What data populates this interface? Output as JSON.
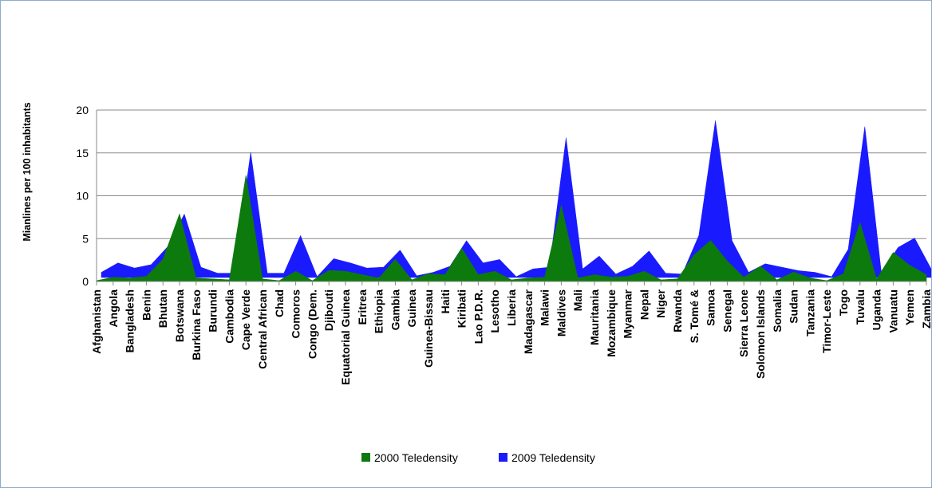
{
  "chart_data": {
    "type": "area",
    "title": "",
    "xlabel": "",
    "ylabel": "Mianlines per 100 inhabitants",
    "ylim": [
      0,
      20
    ],
    "yticks": [
      0,
      5,
      10,
      15,
      20
    ],
    "grid": true,
    "legend_position": "bottom",
    "categories": [
      "Afghanistan",
      "Angola",
      "Bangladesh",
      "Benin",
      "Bhutan",
      "Botswana",
      "Burkina Faso",
      "Burundi",
      "Cambodia",
      "Cape Verde",
      "Central African",
      "Chad",
      "Comoros",
      "Congo (Dem.",
      "Djibouti",
      "Equatorial Guinea",
      "Eritrea",
      "Ethiopia",
      "Gambia",
      "Guinea",
      "Guinea-Bissau",
      "Haiti",
      "Kiribati",
      "Lao P.D.R.",
      "Lesotho",
      "Liberia",
      "Madagascar",
      "Malawi",
      "Maldives",
      "Mali",
      "Mauritania",
      "Mozambique",
      "Myanmar",
      "Nepal",
      "Niger",
      "Rwanda",
      "S. Tomé &",
      "Samoa",
      "Senegal",
      "Sierra Leone",
      "Solomon Islands",
      "Somalia",
      "Sudan",
      "Tanzania",
      "Timor-Leste",
      "Togo",
      "Tuvalu",
      "Uganda",
      "Vanuatu",
      "Yemen",
      "Zambia"
    ],
    "series": [
      {
        "name": "2009 Teledensity",
        "color": "#1a1aff",
        "values": [
          0.6,
          1.7,
          1.1,
          1.5,
          3.6,
          7.4,
          1.2,
          0.5,
          0.5,
          14.6,
          0.5,
          0.5,
          4.9,
          0.1,
          2.2,
          1.7,
          1.1,
          1.2,
          3.2,
          0.2,
          0.6,
          1.3,
          4.3,
          1.7,
          2.1,
          0.1,
          1.0,
          1.2,
          16.3,
          1.0,
          2.5,
          0.4,
          1.3,
          3.1,
          0.5,
          0.4,
          4.9,
          18.3,
          4.3,
          0.6,
          1.6,
          1.2,
          0.8,
          0.6,
          0.1,
          3.3,
          17.6,
          0.5,
          3.5,
          4.6,
          1.0
        ]
      },
      {
        "name": "2000 Teledensity",
        "color": "#0c7a0c",
        "values": [
          0.1,
          0.5,
          0.4,
          0.6,
          2.6,
          7.9,
          0.4,
          0.3,
          0.2,
          12.4,
          0.3,
          0.1,
          1.2,
          0.1,
          1.3,
          1.2,
          0.8,
          0.4,
          2.6,
          0.2,
          0.9,
          0.8,
          3.9,
          0.8,
          1.2,
          0.2,
          0.4,
          0.5,
          8.9,
          0.4,
          0.8,
          0.5,
          0.6,
          1.2,
          0.2,
          0.3,
          3.1,
          4.8,
          2.4,
          0.5,
          1.8,
          0.2,
          1.1,
          0.4,
          0.1,
          0.9,
          6.9,
          0.3,
          3.4,
          1.9,
          0.8
        ]
      }
    ],
    "legend": [
      {
        "label": "2000 Teledensity",
        "color": "#0c7a0c"
      },
      {
        "label": "2009 Teledensity",
        "color": "#1a1aff"
      }
    ]
  }
}
